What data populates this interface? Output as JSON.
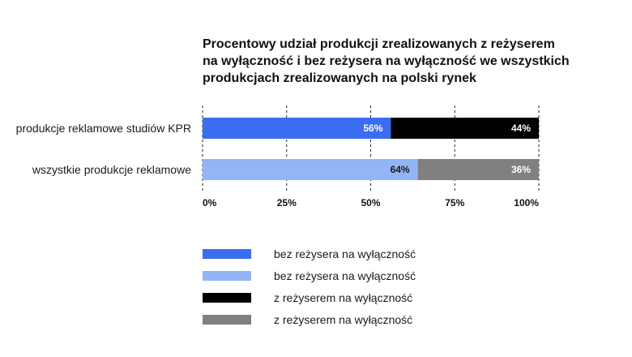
{
  "chart_data": {
    "type": "bar",
    "orientation": "horizontal",
    "stacked": true,
    "title_lines": [
      "Procentowy udział produkcji zrealizowanych z reżyserem",
      "na wyłączność i bez reżysera na wyłączność we wszystkich",
      "produkcjach zrealizowanych na polski rynek"
    ],
    "categories": [
      "produkcje reklamowe studiów KPR",
      "wszystkie produkcje reklamowe"
    ],
    "xlim": [
      0,
      100
    ],
    "xticks": [
      0,
      25,
      50,
      75,
      100
    ],
    "xtick_labels": [
      "0%",
      "25%",
      "50%",
      "75%",
      "100%"
    ],
    "grid": "vertical dashed",
    "bars": [
      {
        "category": "produkcje reklamowe studiów KPR",
        "segments": [
          {
            "legend_index": 0,
            "value": 56,
            "label": "56%",
            "color": "#3a6df0",
            "label_color": "#ffffff"
          },
          {
            "legend_index": 2,
            "value": 44,
            "label": "44%",
            "color": "#000000",
            "label_color": "#ffffff"
          }
        ]
      },
      {
        "category": "wszystkie produkcje reklamowe",
        "segments": [
          {
            "legend_index": 1,
            "value": 64,
            "label": "64%",
            "color": "#93b4f7",
            "label_color": "#1a1a1a"
          },
          {
            "legend_index": 3,
            "value": 36,
            "label": "36%",
            "color": "#808080",
            "label_color": "#ffffff"
          }
        ]
      }
    ],
    "legend": [
      {
        "name": "bez reżysera na wyłączność",
        "color": "#3a6df0"
      },
      {
        "name": "bez reżysera na wyłączność",
        "color": "#93b4f7"
      },
      {
        "name": "z reżyserem na wyłączność",
        "color": "#000000"
      },
      {
        "name": "z reżyserem na wyłączność",
        "color": "#808080"
      }
    ],
    "legend_position": "bottom"
  }
}
